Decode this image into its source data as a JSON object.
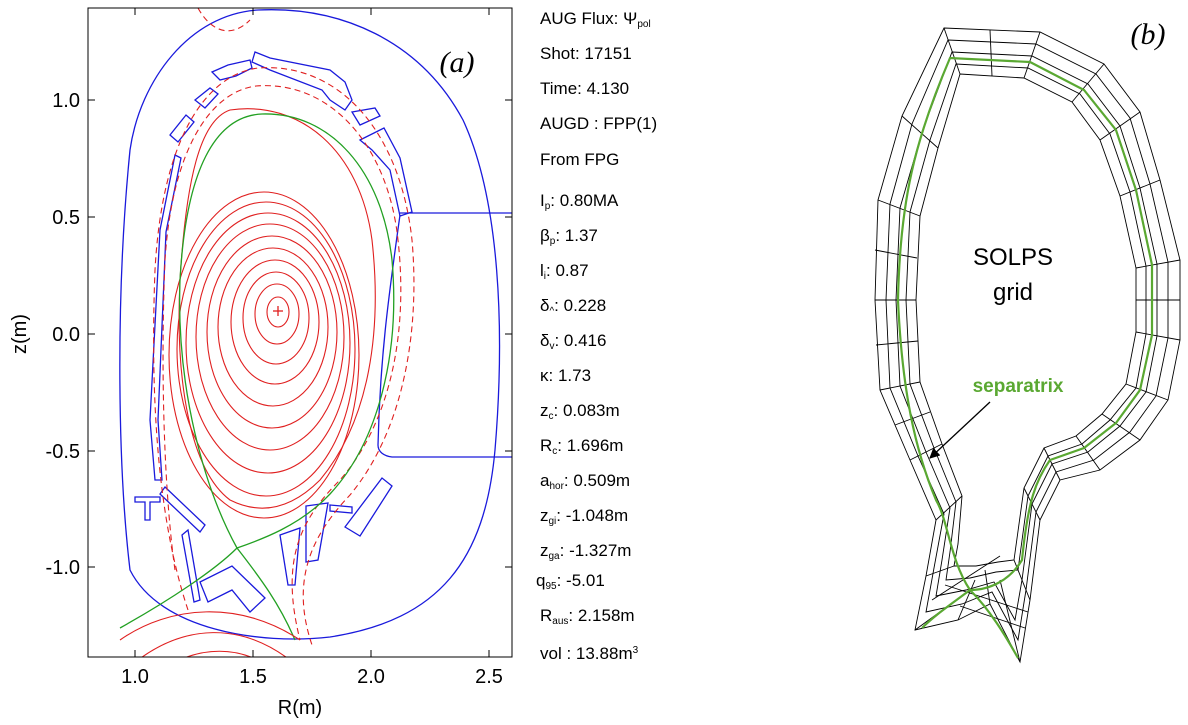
{
  "panel_a": {
    "label": "(a)",
    "xlabel": "R(m)",
    "ylabel": "z(m)",
    "x_ticks": [
      "1.0",
      "1.5",
      "2.0",
      "2.5"
    ],
    "y_ticks": [
      "1.0",
      "0.5",
      "0.0",
      "-0.5",
      "-1.0"
    ],
    "xlim": [
      0.8,
      2.6
    ],
    "ylim": [
      -1.4,
      1.35
    ],
    "magnetic_axis": {
      "R": 1.73,
      "z": 0.1
    },
    "colors": {
      "vessel": "#1a1adc",
      "flux": "#e02020",
      "separatrix": "#22a022",
      "axis_marker": "#e02020"
    }
  },
  "info": {
    "title": "AUG Flux: ",
    "title_sym": "Ψ",
    "title_sub": "pol",
    "shot": "Shot: 17151",
    "time": "Time:  4.130",
    "source": "AUGD : FPP(1)",
    "from": "From FPG",
    "params": [
      {
        "sym": "I",
        "sub": "p",
        "val": ":  0.80MA"
      },
      {
        "sym": "β",
        "sub": "p",
        "val": ":  1.37"
      },
      {
        "sym": "l",
        "sub": "i",
        "val": ":  0.87"
      },
      {
        "sym": "δ",
        "sub": "^",
        "val": ":  0.228"
      },
      {
        "sym": "δ",
        "sub": "v",
        "val": ":  0.416"
      },
      {
        "sym": "κ",
        "sub": "",
        "val": ":  1.73"
      },
      {
        "sym": "z",
        "sub": "c",
        "val": ":  0.083m"
      },
      {
        "sym": "R",
        "sub": "c",
        "val": ":  1.696m"
      },
      {
        "sym": "a",
        "sub": "hor",
        "val": ":  0.509m"
      },
      {
        "sym": "z",
        "sub": "gi",
        "val": ": -1.048m"
      },
      {
        "sym": "z",
        "sub": "ga",
        "val": ": -1.327m"
      },
      {
        "sym": "q",
        "sub": "95",
        "val": ": -5.01"
      },
      {
        "sym": "R",
        "sub": "aus",
        "val": ": 2.158m"
      }
    ],
    "vol_text": "vol : 13.88m",
    "vol_sup": "3"
  },
  "panel_b": {
    "label": "(b)",
    "grid_label_1": "SOLPS",
    "grid_label_2": "grid",
    "separatrix_label": "separatrix",
    "colors": {
      "grid": "#000000",
      "separatrix": "#5aa832"
    }
  }
}
